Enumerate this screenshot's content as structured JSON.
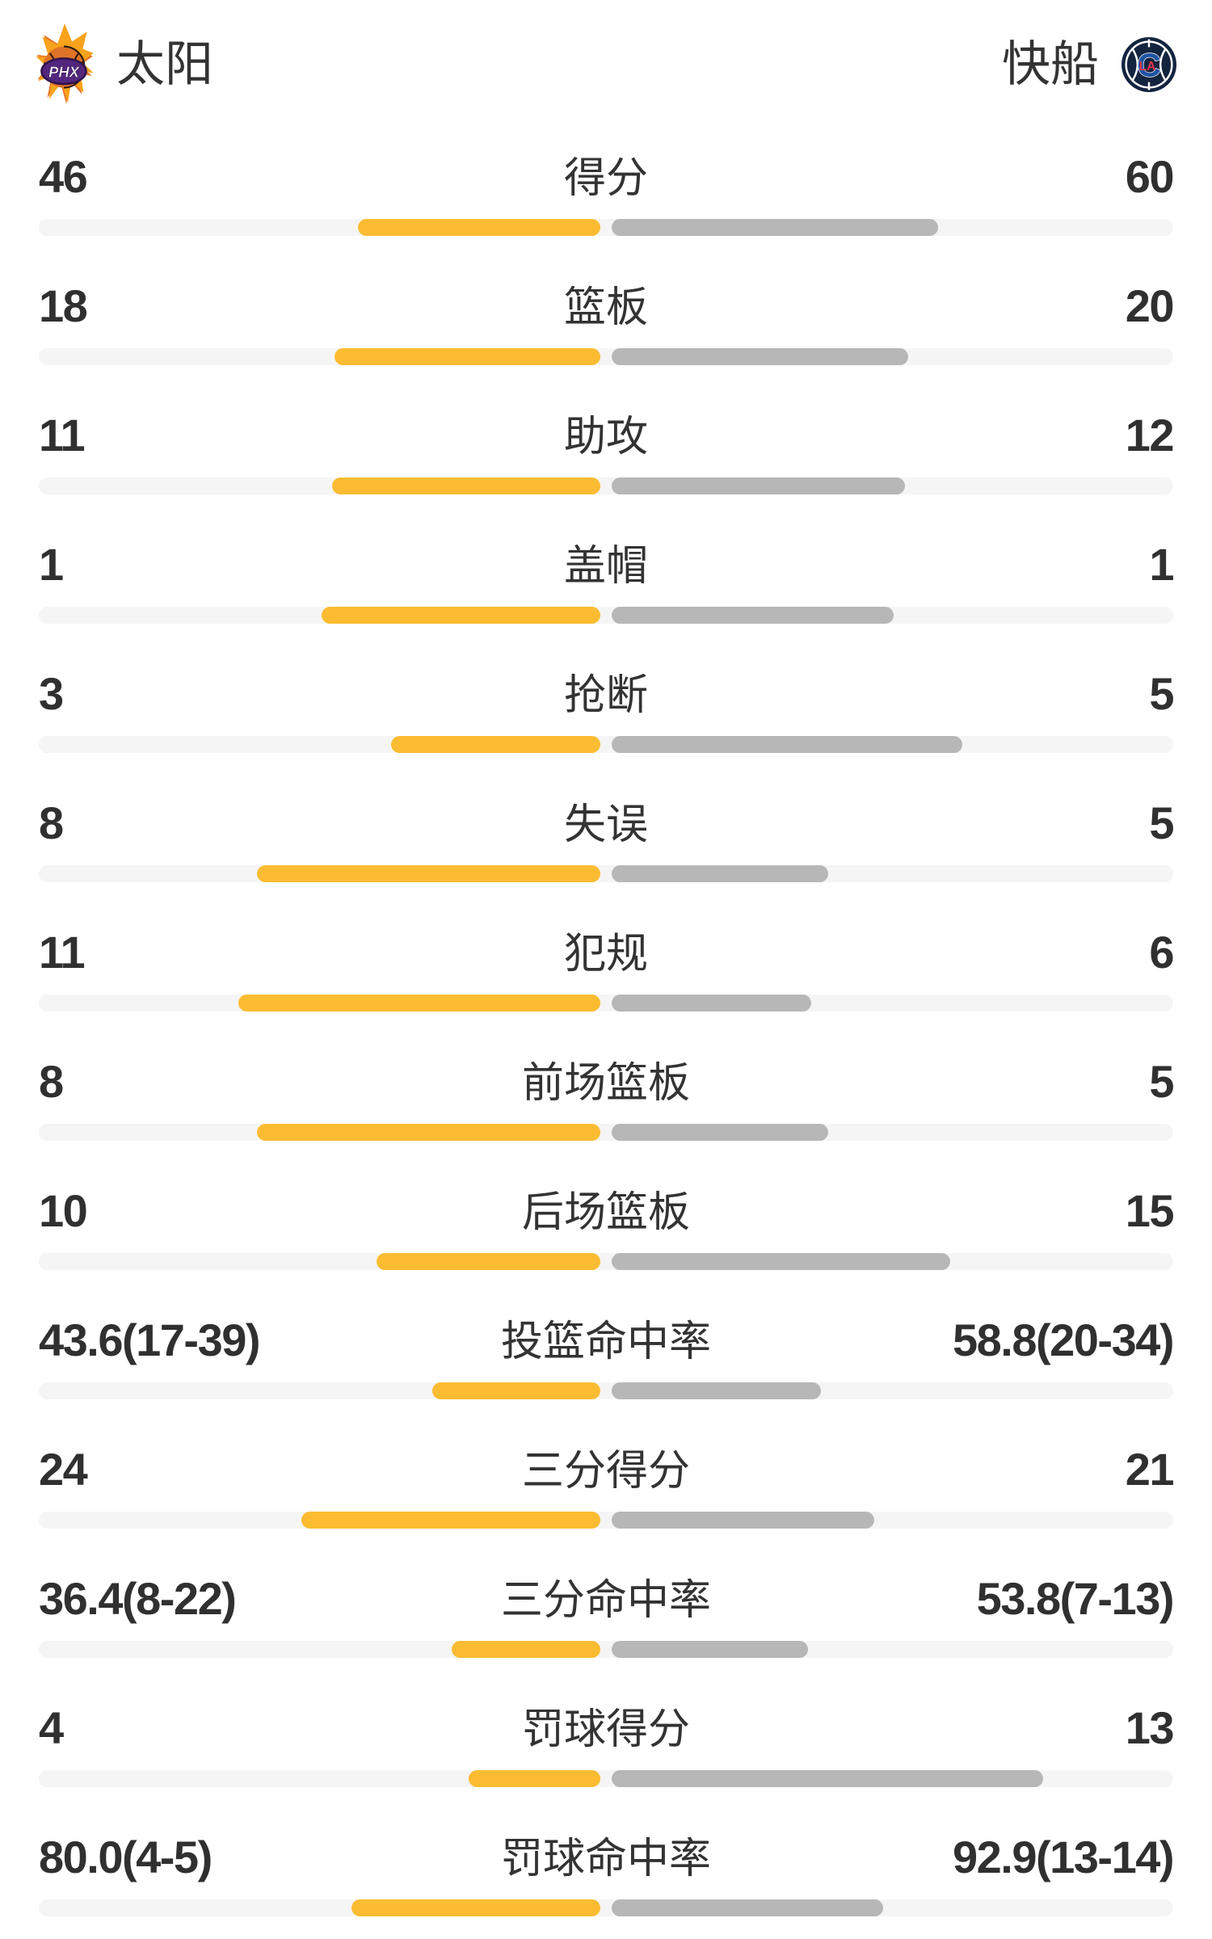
{
  "header": {
    "home": {
      "name": "太阳",
      "logo_text": "PHX"
    },
    "away": {
      "name": "快船",
      "logo_c": "C",
      "logo_la": "LA"
    }
  },
  "colors": {
    "home_bar": "#FBBC32",
    "away_bar": "#B7B7B7",
    "track": "#F5F5F6",
    "text": "#333333",
    "suns_orange": "#F9A21B",
    "suns_dark_orange": "#E8762B",
    "suns_ball": "#DF7327",
    "suns_purple": "#53267E",
    "clippers_navy": "#13243F",
    "clippers_blue": "#1C53A3",
    "clippers_red": "#E8334A"
  },
  "chart_data": {
    "type": "bar",
    "subtype": "bilateral-team-comparison",
    "teams": [
      "太阳",
      "快船"
    ],
    "bar_scale_note": "each bar grows from the center gap outward; width stored as percent of half-track",
    "rows": [
      {
        "label": "得分",
        "home": "46",
        "away": "60",
        "home_value": 46,
        "away_value": 60,
        "home_bar_pct": 43.1,
        "away_bar_pct": 58.2
      },
      {
        "label": "篮板",
        "home": "18",
        "away": "20",
        "home_value": 18,
        "away_value": 20,
        "home_bar_pct": 47.4,
        "away_bar_pct": 52.8
      },
      {
        "label": "助攻",
        "home": "11",
        "away": "12",
        "home_value": 11,
        "away_value": 12,
        "home_bar_pct": 47.8,
        "away_bar_pct": 52.3
      },
      {
        "label": "盖帽",
        "home": "1",
        "away": "1",
        "home_value": 1,
        "away_value": 1,
        "home_bar_pct": 49.7,
        "away_bar_pct": 50.2
      },
      {
        "label": "抢断",
        "home": "3",
        "away": "5",
        "home_value": 3,
        "away_value": 5,
        "home_bar_pct": 37.3,
        "away_bar_pct": 62.5
      },
      {
        "label": "失误",
        "home": "8",
        "away": "5",
        "home_value": 8,
        "away_value": 5,
        "home_bar_pct": 61.2,
        "away_bar_pct": 38.5
      },
      {
        "label": "犯规",
        "home": "11",
        "away": "6",
        "home_value": 11,
        "away_value": 6,
        "home_bar_pct": 64.5,
        "away_bar_pct": 35.5
      },
      {
        "label": "前场篮板",
        "home": "8",
        "away": "5",
        "home_value": 8,
        "away_value": 5,
        "home_bar_pct": 61.2,
        "away_bar_pct": 38.6
      },
      {
        "label": "后场篮板",
        "home": "10",
        "away": "15",
        "home_value": 10,
        "away_value": 15,
        "home_bar_pct": 39.9,
        "away_bar_pct": 60.3
      },
      {
        "label": "投篮命中率",
        "home": "43.6(17-39)",
        "away": "58.8(20-34)",
        "home_value": 43.6,
        "away_value": 58.8,
        "home_made": 17,
        "home_att": 39,
        "away_made": 20,
        "away_att": 34,
        "home_bar_pct": 30.0,
        "away_bar_pct": 37.3
      },
      {
        "label": "三分得分",
        "home": "24",
        "away": "21",
        "home_value": 24,
        "away_value": 21,
        "home_bar_pct": 53.3,
        "away_bar_pct": 46.7
      },
      {
        "label": "三分命中率",
        "home": "36.4(8-22)",
        "away": "53.8(7-13)",
        "home_value": 36.4,
        "away_value": 53.8,
        "home_made": 8,
        "home_att": 22,
        "away_made": 7,
        "away_att": 13,
        "home_bar_pct": 26.5,
        "away_bar_pct": 35.0
      },
      {
        "label": "罚球得分",
        "home": "4",
        "away": "13",
        "home_value": 4,
        "away_value": 13,
        "home_bar_pct": 23.4,
        "away_bar_pct": 76.8
      },
      {
        "label": "罚球命中率",
        "home": "80.0(4-5)",
        "away": "92.9(13-14)",
        "home_value": 80.0,
        "away_value": 92.9,
        "home_made": 4,
        "home_att": 5,
        "away_made": 13,
        "away_att": 14,
        "home_bar_pct": 44.3,
        "away_bar_pct": 48.4
      }
    ]
  }
}
